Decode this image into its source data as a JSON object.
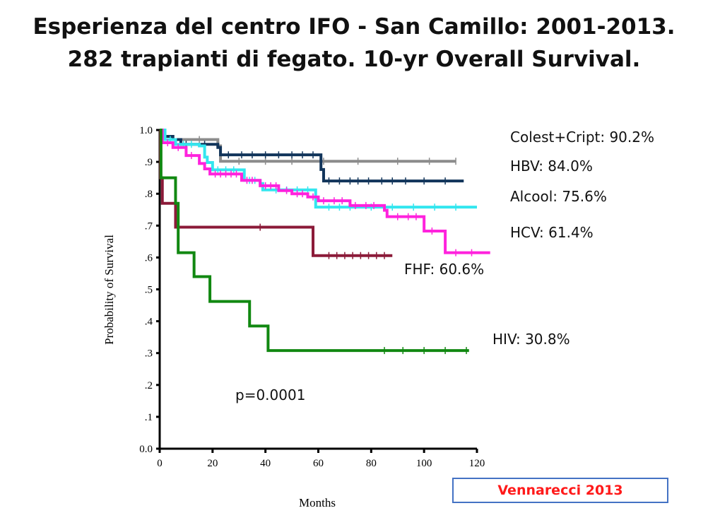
{
  "title": {
    "line1": "Esperienza del centro IFO - San Camillo: 2001-2013.",
    "line2": "282 trapianti di fegato. 10-yr Overall Survival."
  },
  "source_label": "Vennarecci 2013",
  "chart_data": {
    "type": "line",
    "xlabel": "Months",
    "ylabel": "Probability of Survival",
    "xlim": [
      0,
      120
    ],
    "ylim": [
      0.0,
      1.0
    ],
    "x_ticks": [
      0,
      20,
      40,
      60,
      80,
      100,
      120
    ],
    "x_tick_labels": [
      "0",
      "20",
      "40",
      "60",
      "80",
      "100",
      "120"
    ],
    "y_ticks": [
      0.0,
      0.1,
      0.2,
      0.3,
      0.4,
      0.5,
      0.6,
      0.7,
      0.8,
      0.9,
      1.0
    ],
    "y_tick_labels": [
      "0.0",
      ".1",
      ".2",
      ".3",
      ".4",
      ".5",
      ".6",
      ".7",
      ".8",
      ".9",
      "1.0"
    ],
    "grid": false,
    "series": [
      {
        "label": "Colest+Cript: 90.2%",
        "color": "#8c8c8c",
        "points": [
          [
            0,
            1.0
          ],
          [
            1,
            0.98
          ],
          [
            5,
            0.97
          ],
          [
            22,
            0.95
          ],
          [
            23,
            0.902
          ],
          [
            112,
            0.902
          ]
        ],
        "censor": [
          15,
          30,
          40,
          50,
          62,
          75,
          90,
          102,
          112
        ]
      },
      {
        "label": "HBV: 84.0%",
        "color": "#12355b",
        "points": [
          [
            0,
            1.0
          ],
          [
            2,
            0.98
          ],
          [
            5,
            0.97
          ],
          [
            8,
            0.955
          ],
          [
            22,
            0.945
          ],
          [
            23,
            0.922
          ],
          [
            60,
            0.922
          ],
          [
            61,
            0.876
          ],
          [
            62,
            0.84
          ],
          [
            115,
            0.84
          ]
        ],
        "censor": [
          10,
          17,
          26,
          31,
          35,
          40,
          45,
          50,
          54,
          58,
          64,
          68,
          72,
          75,
          79,
          84,
          88,
          93,
          100,
          108
        ]
      },
      {
        "label": "Alcool: 75.6%",
        "color": "#33e6ef",
        "points": [
          [
            0,
            1.0
          ],
          [
            2,
            0.97
          ],
          [
            6,
            0.955
          ],
          [
            15,
            0.95
          ],
          [
            17,
            0.915
          ],
          [
            18,
            0.898
          ],
          [
            20,
            0.875
          ],
          [
            30,
            0.875
          ],
          [
            32,
            0.842
          ],
          [
            38,
            0.832
          ],
          [
            39,
            0.812
          ],
          [
            58,
            0.812
          ],
          [
            59,
            0.758
          ],
          [
            120,
            0.758
          ]
        ],
        "censor": [
          4,
          9,
          12,
          22,
          25,
          28,
          34,
          36,
          44,
          48,
          52,
          56,
          64,
          68,
          72,
          80,
          88,
          96,
          104,
          112
        ]
      },
      {
        "label": "HCV: 61.4%",
        "color": "#ff22dd",
        "points": [
          [
            0,
            1.0
          ],
          [
            1,
            0.96
          ],
          [
            5,
            0.945
          ],
          [
            10,
            0.92
          ],
          [
            15,
            0.895
          ],
          [
            17,
            0.878
          ],
          [
            19,
            0.862
          ],
          [
            30,
            0.862
          ],
          [
            31,
            0.842
          ],
          [
            38,
            0.825
          ],
          [
            45,
            0.81
          ],
          [
            50,
            0.8
          ],
          [
            56,
            0.79
          ],
          [
            60,
            0.778
          ],
          [
            72,
            0.763
          ],
          [
            85,
            0.748
          ],
          [
            86,
            0.728
          ],
          [
            99,
            0.728
          ],
          [
            100,
            0.683
          ],
          [
            107,
            0.683
          ],
          [
            108,
            0.615
          ],
          [
            125,
            0.615
          ]
        ],
        "censor": [
          3,
          7,
          12,
          21,
          23,
          25,
          27,
          29,
          33,
          35,
          40,
          42,
          44,
          48,
          52,
          54,
          58,
          62,
          66,
          69,
          74,
          78,
          81,
          90,
          94,
          97,
          103,
          112,
          118
        ]
      },
      {
        "label": "FHF: 60.6%",
        "color": "#8b1a38",
        "points": [
          [
            0,
            1.0
          ],
          [
            0.3,
            0.85
          ],
          [
            1,
            0.77
          ],
          [
            5,
            0.77
          ],
          [
            6,
            0.695
          ],
          [
            57,
            0.695
          ],
          [
            58,
            0.606
          ],
          [
            88,
            0.606
          ]
        ],
        "censor": [
          38,
          64,
          67,
          70,
          73,
          76,
          79,
          82,
          85
        ]
      },
      {
        "label": "HIV: 30.8%",
        "color": "#118811",
        "points": [
          [
            0,
            1.0
          ],
          [
            0.5,
            0.85
          ],
          [
            5,
            0.85
          ],
          [
            6,
            0.77
          ],
          [
            7,
            0.615
          ],
          [
            12,
            0.615
          ],
          [
            13,
            0.54
          ],
          [
            18,
            0.54
          ],
          [
            19,
            0.462
          ],
          [
            33,
            0.462
          ],
          [
            34,
            0.385
          ],
          [
            40,
            0.385
          ],
          [
            41,
            0.308
          ],
          [
            117,
            0.308
          ]
        ],
        "censor": [
          85,
          92,
          100,
          108,
          116
        ]
      }
    ],
    "annotations": [
      {
        "text": "p=0.0001"
      }
    ]
  }
}
